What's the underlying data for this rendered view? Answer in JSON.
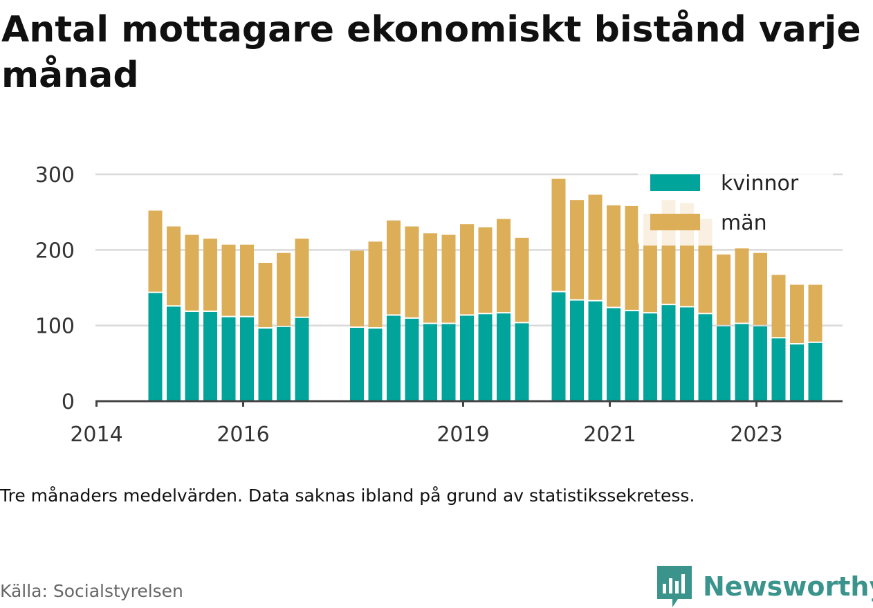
{
  "title": "Antal mottagare ekonomiskt bistånd varje månad",
  "note": "Tre månaders medelvärden. Data saknas ibland på grund av statistikssekretess.",
  "source": "Källa: Socialstyrelsen",
  "brand": "Newsworthy",
  "colors": {
    "kvinnor": "#00a49a",
    "man": "#dcae58",
    "grid": "#d9d9d9",
    "axis": "#444444",
    "brand": "#3a948c"
  },
  "chart_data": {
    "type": "bar",
    "stacked": true,
    "grid": true,
    "legend_position": "top-right",
    "ylim": [
      0,
      300
    ],
    "y_ticks": [
      0,
      100,
      200,
      300
    ],
    "x_tick_labels": [
      "2014",
      "2016",
      "2019",
      "2021",
      "2023"
    ],
    "x_ticks_at_period": [
      0,
      8,
      20,
      28,
      36
    ],
    "legend": [
      "kvinnor",
      "män"
    ],
    "periods": [
      3,
      4,
      5,
      6,
      7,
      8,
      9,
      10,
      11,
      14,
      15,
      16,
      17,
      18,
      19,
      20,
      21,
      22,
      23,
      25,
      26,
      27,
      28,
      29,
      30,
      31,
      32,
      33,
      34,
      35,
      36,
      37,
      38,
      39
    ],
    "series": [
      {
        "name": "kvinnor",
        "values": [
          143,
          125,
          118,
          118,
          111,
          111,
          96,
          98,
          110,
          97,
          96,
          113,
          109,
          102,
          102,
          113,
          115,
          116,
          103,
          144,
          133,
          132,
          123,
          119,
          116,
          127,
          124,
          115,
          99,
          102,
          99,
          83,
          75,
          77
        ]
      },
      {
        "name": "män",
        "values": [
          109,
          106,
          102,
          97,
          96,
          96,
          87,
          98,
          105,
          102,
          115,
          126,
          122,
          120,
          118,
          121,
          115,
          125,
          113,
          150,
          133,
          141,
          136,
          139,
          132,
          139,
          138,
          126,
          95,
          100,
          97,
          84,
          79,
          77
        ]
      }
    ]
  }
}
